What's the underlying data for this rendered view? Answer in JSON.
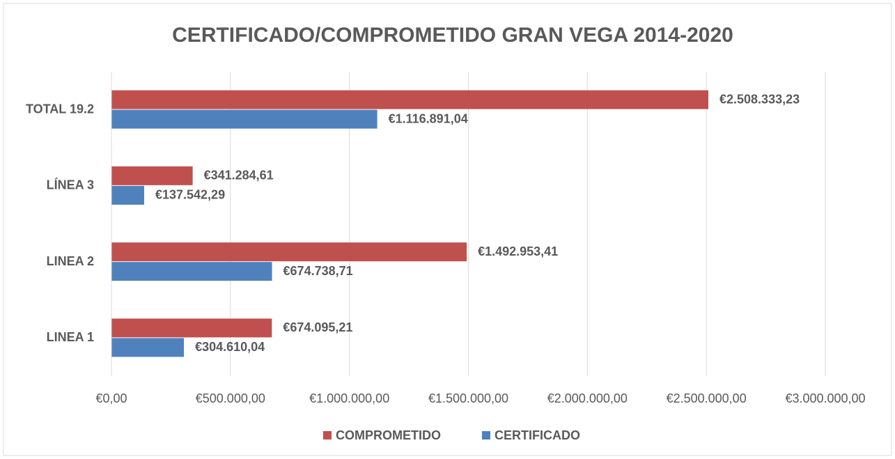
{
  "chart_data": {
    "type": "hbar",
    "title": "CERTIFICADO/COMPROMETIDO GRAN VEGA 2014-2020",
    "categories": [
      "LINEA 1",
      "LINEA 2",
      "LÍNEA 3",
      "TOTAL 19.2"
    ],
    "series": [
      {
        "name": "COMPROMETIDO",
        "color": "#c0504d",
        "values": [
          674095.21,
          1492953.41,
          341284.61,
          2508333.23
        ],
        "value_labels": [
          "€674.095,21",
          "€1.492.953,41",
          "€341.284,61",
          "€2.508.333,23"
        ]
      },
      {
        "name": "CERTIFICADO",
        "color": "#4f81bd",
        "values": [
          304610.04,
          674738.71,
          137542.29,
          1116891.04
        ],
        "value_labels": [
          "€304.610,04",
          "€674.738,71",
          "€137.542,29",
          "€1.116.891,04"
        ]
      }
    ],
    "xlim": [
      0,
      3000000
    ],
    "xticks": [
      {
        "value": 0,
        "label": "€0,00"
      },
      {
        "value": 500000,
        "label": "€500.000,00"
      },
      {
        "value": 1000000,
        "label": "€1.000.000,00"
      },
      {
        "value": 1500000,
        "label": "€1.500.000,00"
      },
      {
        "value": 2000000,
        "label": "€2.000.000,00"
      },
      {
        "value": 2500000,
        "label": "€2.500.000,00"
      },
      {
        "value": 3000000,
        "label": "€3.000.000,00"
      }
    ],
    "grid": true,
    "legend": "bottom"
  }
}
